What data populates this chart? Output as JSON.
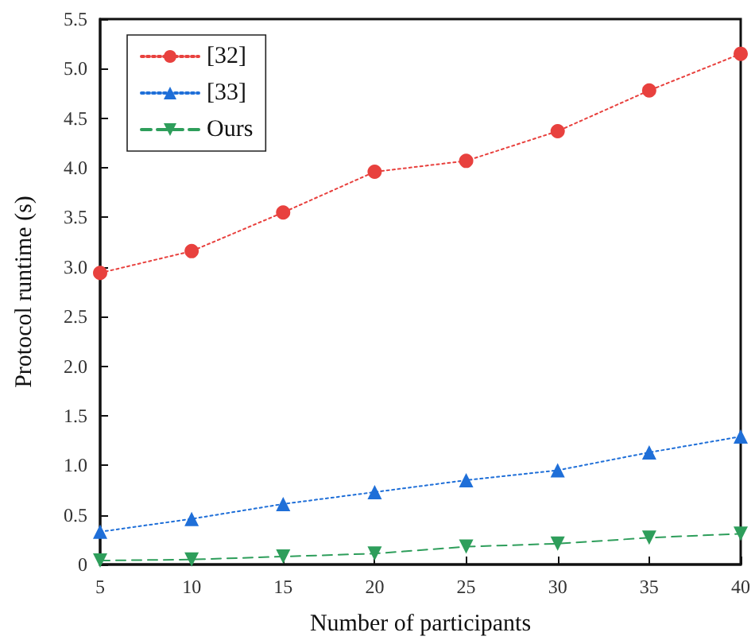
{
  "chart_data": {
    "type": "line",
    "xlabel": "Number of participants",
    "ylabel": "Protocol runtime (s)",
    "x": [
      5,
      10,
      15,
      20,
      25,
      30,
      35,
      40
    ],
    "xlim": [
      5,
      40
    ],
    "xticks": [
      5,
      10,
      15,
      20,
      25,
      30,
      35,
      40
    ],
    "ylim": [
      0,
      5.5
    ],
    "yticks": [
      0,
      0.5,
      {
        "value": 1,
        "label": "1.0"
      },
      1.5,
      {
        "value": 2,
        "label": "2.0"
      },
      2.5,
      {
        "value": 3,
        "label": "3.0"
      },
      3.5,
      {
        "value": 4,
        "label": "4.0"
      },
      4.5,
      {
        "value": 5,
        "label": "5.0"
      },
      5.5
    ],
    "grid": false,
    "legend": "top left",
    "series": [
      {
        "name": "[32]",
        "color": "#e8413e",
        "marker": "circle",
        "line_style": "dotted",
        "values": [
          2.94,
          3.16,
          3.55,
          3.96,
          4.07,
          4.37,
          4.78,
          5.15
        ]
      },
      {
        "name": "[33]",
        "color": "#1f6fd8",
        "marker": "triangle",
        "line_style": "dotted",
        "values": [
          0.33,
          0.46,
          0.61,
          0.73,
          0.85,
          0.95,
          1.13,
          1.29
        ]
      },
      {
        "name": "Ours",
        "color": "#2e9e5b",
        "marker": "triangle_down",
        "line_style": "dashed",
        "values": [
          0.04,
          0.05,
          0.08,
          0.11,
          0.18,
          0.21,
          0.27,
          0.31
        ]
      }
    ]
  }
}
